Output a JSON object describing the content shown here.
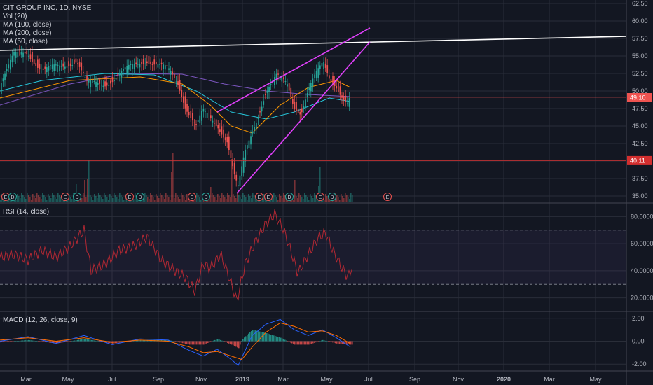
{
  "title": "CIT GROUP INC, 1D, NYSE",
  "indicators": [
    "Vol (20)",
    "MA (100, close)",
    "MA (200, close)",
    "MA (50, close)"
  ],
  "rsi_label": "RSI (14, close)",
  "macd_label": "MACD (12, 26, close, 9)",
  "price_badges": {
    "last": "49.10",
    "support": "40.11"
  },
  "colors": {
    "background": "#131722",
    "up": "#26a69a",
    "down": "#ef5350",
    "trendline_white": "#ffffff",
    "wedge": "#e040fb",
    "support": "#d32f2f",
    "rsi": "#b22833",
    "macd": "#2962ff",
    "signal": "#ff6d00"
  },
  "chart_data": [
    {
      "type": "candlestick",
      "title": "CIT GROUP INC, 1D, NYSE",
      "x_ticks": [
        "Mar",
        "May",
        "Jul",
        "Sep",
        "Nov",
        "2019",
        "Mar",
        "May",
        "Jul",
        "Sep",
        "Nov",
        "2020",
        "Mar",
        "May"
      ],
      "y_ticks": [
        "62.50",
        "60.00",
        "57.50",
        "55.00",
        "52.50",
        "50.00",
        "47.50",
        "45.00",
        "42.50",
        "40.00",
        "37.50",
        "35.00"
      ],
      "ylim": [
        34,
        63
      ],
      "price_path": [
        [
          0,
          51
        ],
        [
          10,
          53
        ],
        [
          20,
          55
        ],
        [
          40,
          55.5
        ],
        [
          60,
          53
        ],
        [
          90,
          53.5
        ],
        [
          110,
          54.5
        ],
        [
          125,
          51
        ],
        [
          150,
          51
        ],
        [
          180,
          53
        ],
        [
          210,
          54.5
        ],
        [
          240,
          53
        ],
        [
          255,
          51
        ],
        [
          265,
          48
        ],
        [
          280,
          45
        ],
        [
          290,
          47
        ],
        [
          300,
          46
        ],
        [
          312,
          45
        ],
        [
          325,
          43
        ],
        [
          335,
          38
        ],
        [
          340,
          36
        ],
        [
          350,
          41
        ],
        [
          360,
          44
        ],
        [
          370,
          47
        ],
        [
          380,
          50
        ],
        [
          395,
          52
        ],
        [
          410,
          51
        ],
        [
          420,
          48
        ],
        [
          430,
          47
        ],
        [
          440,
          50
        ],
        [
          450,
          52
        ],
        [
          462,
          54
        ],
        [
          470,
          52
        ],
        [
          480,
          51
        ],
        [
          490,
          49
        ],
        [
          497,
          48
        ],
        [
          500,
          49.1
        ]
      ],
      "volume_spike_x": [
        108,
        120,
        125,
        245,
        300,
        330,
        420,
        455
      ],
      "ma_50": [
        [
          0,
          49
        ],
        [
          40,
          50
        ],
        [
          100,
          51.5
        ],
        [
          200,
          52
        ],
        [
          260,
          51
        ],
        [
          300,
          48
        ],
        [
          330,
          45
        ],
        [
          360,
          44
        ],
        [
          400,
          48
        ],
        [
          440,
          50.5
        ],
        [
          480,
          51.5
        ],
        [
          500,
          50.5
        ]
      ],
      "ma_100": [
        [
          0,
          50
        ],
        [
          60,
          51.5
        ],
        [
          150,
          52.5
        ],
        [
          220,
          52.3
        ],
        [
          280,
          50
        ],
        [
          330,
          47
        ],
        [
          380,
          46
        ],
        [
          420,
          47
        ],
        [
          470,
          49
        ],
        [
          500,
          48.5
        ]
      ],
      "ma_200": [
        [
          0,
          48
        ],
        [
          100,
          51
        ],
        [
          180,
          52.5
        ],
        [
          260,
          52.4
        ],
        [
          320,
          51
        ],
        [
          380,
          50
        ],
        [
          440,
          49.5
        ],
        [
          500,
          49.2
        ]
      ],
      "trendlines": [
        {
          "name": "resistance",
          "from": [
            0,
            55.8
          ],
          "to": [
            894,
            57.8
          ]
        },
        {
          "name": "wedge-upper",
          "from": [
            310,
            47
          ],
          "to": [
            528,
            59
          ]
        },
        {
          "name": "wedge-lower",
          "from": [
            338,
            35.4
          ],
          "to": [
            528,
            57
          ]
        },
        {
          "name": "support",
          "from": [
            0,
            40.11
          ],
          "to": [
            894,
            40.11
          ]
        }
      ],
      "event_markers": [
        "E",
        "D",
        "E",
        "D",
        "E",
        "D",
        "E",
        "D",
        "E",
        "E",
        "D",
        "E",
        "D",
        "E"
      ]
    },
    {
      "type": "line",
      "title": "RSI (14, close)",
      "y_ticks": [
        "80.0000",
        "60.0000",
        "40.0000",
        "20.0000"
      ],
      "ylim": [
        10,
        90
      ],
      "bands": [
        30,
        70
      ],
      "values": [
        [
          0,
          50
        ],
        [
          20,
          52
        ],
        [
          40,
          48
        ],
        [
          60,
          55
        ],
        [
          80,
          50
        ],
        [
          100,
          58
        ],
        [
          120,
          70
        ],
        [
          130,
          40
        ],
        [
          150,
          45
        ],
        [
          170,
          55
        ],
        [
          190,
          58
        ],
        [
          210,
          65
        ],
        [
          230,
          48
        ],
        [
          250,
          40
        ],
        [
          265,
          35
        ],
        [
          278,
          25
        ],
        [
          290,
          45
        ],
        [
          300,
          42
        ],
        [
          315,
          52
        ],
        [
          325,
          38
        ],
        [
          338,
          18
        ],
        [
          350,
          45
        ],
        [
          365,
          62
        ],
        [
          380,
          75
        ],
        [
          392,
          82
        ],
        [
          405,
          70
        ],
        [
          415,
          55
        ],
        [
          425,
          38
        ],
        [
          440,
          52
        ],
        [
          455,
          65
        ],
        [
          465,
          68
        ],
        [
          475,
          55
        ],
        [
          488,
          42
        ],
        [
          497,
          35
        ],
        [
          502,
          43
        ]
      ]
    },
    {
      "type": "line",
      "title": "MACD (12, 26, close, 9)",
      "y_ticks": [
        "2.00",
        "0.00",
        "-2.00"
      ],
      "ylim": [
        -2.6,
        2.6
      ],
      "macd": [
        [
          0,
          0
        ],
        [
          40,
          0.4
        ],
        [
          80,
          -0.2
        ],
        [
          120,
          0.5
        ],
        [
          160,
          -0.3
        ],
        [
          200,
          0.2
        ],
        [
          240,
          0.1
        ],
        [
          270,
          -0.8
        ],
        [
          290,
          -1.3
        ],
        [
          310,
          -0.7
        ],
        [
          330,
          -1.6
        ],
        [
          340,
          -2.1
        ],
        [
          360,
          0.5
        ],
        [
          380,
          1.5
        ],
        [
          400,
          1.9
        ],
        [
          420,
          1.0
        ],
        [
          440,
          0.5
        ],
        [
          460,
          1.0
        ],
        [
          480,
          0.3
        ],
        [
          500,
          -0.5
        ]
      ],
      "signal": [
        [
          0,
          0.1
        ],
        [
          40,
          0.3
        ],
        [
          80,
          0
        ],
        [
          120,
          0.3
        ],
        [
          160,
          -0.1
        ],
        [
          200,
          0.1
        ],
        [
          240,
          0
        ],
        [
          270,
          -0.5
        ],
        [
          290,
          -1.0
        ],
        [
          310,
          -0.9
        ],
        [
          330,
          -1.3
        ],
        [
          345,
          -1.6
        ],
        [
          360,
          -0.5
        ],
        [
          380,
          0.8
        ],
        [
          400,
          1.6
        ],
        [
          420,
          1.3
        ],
        [
          440,
          0.8
        ],
        [
          460,
          0.9
        ],
        [
          480,
          0.5
        ],
        [
          500,
          -0.2
        ]
      ]
    }
  ]
}
